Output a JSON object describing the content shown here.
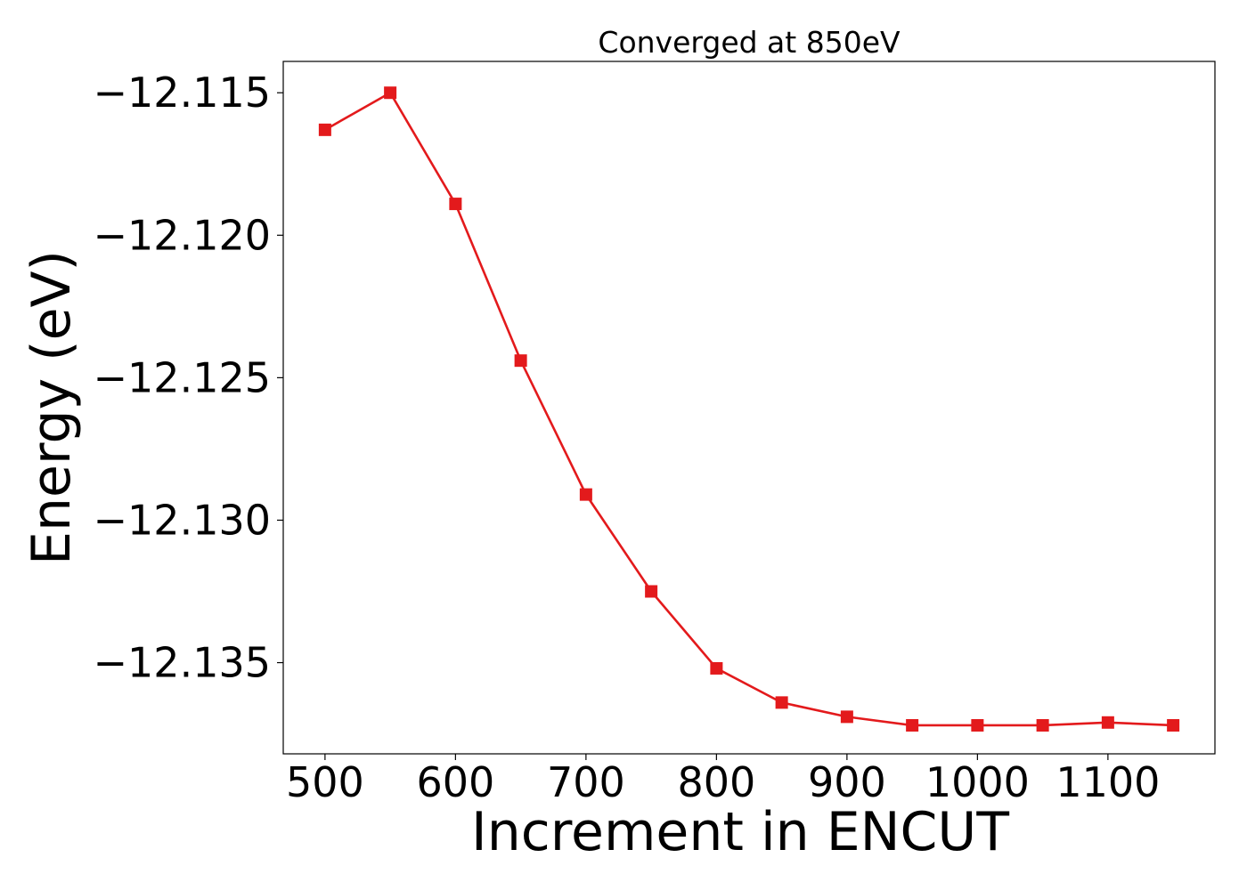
{
  "chart_data": {
    "type": "line",
    "title": "Converged at 850eV",
    "xlabel": "Increment in ENCUT",
    "ylabel": "Energy (eV)",
    "x": [
      500,
      550,
      600,
      650,
      700,
      750,
      800,
      850,
      900,
      950,
      1000,
      1050,
      1100,
      1150
    ],
    "series": [
      {
        "values": [
          -12.1163,
          -12.115,
          -12.1189,
          -12.1244,
          -12.1291,
          -12.1325,
          -12.1352,
          -12.1364,
          -12.1369,
          -12.1372,
          -12.1372,
          -12.1372,
          -12.1371,
          -12.1372
        ],
        "color": "#e31a1c",
        "marker": "square"
      }
    ],
    "xlim": [
      468,
      1182
    ],
    "ylim": [
      -12.1382,
      -12.1139
    ],
    "xticks": [
      500,
      600,
      700,
      800,
      900,
      1000,
      1100
    ],
    "xtick_labels": [
      "500",
      "600",
      "700",
      "800",
      "900",
      "1000",
      "1100"
    ],
    "yticks": [
      -12.115,
      -12.12,
      -12.125,
      -12.13,
      -12.135
    ],
    "ytick_labels": [
      "−12.115",
      "−12.120",
      "−12.125",
      "−12.130",
      "−12.135"
    ],
    "grid": false,
    "legend": false
  }
}
